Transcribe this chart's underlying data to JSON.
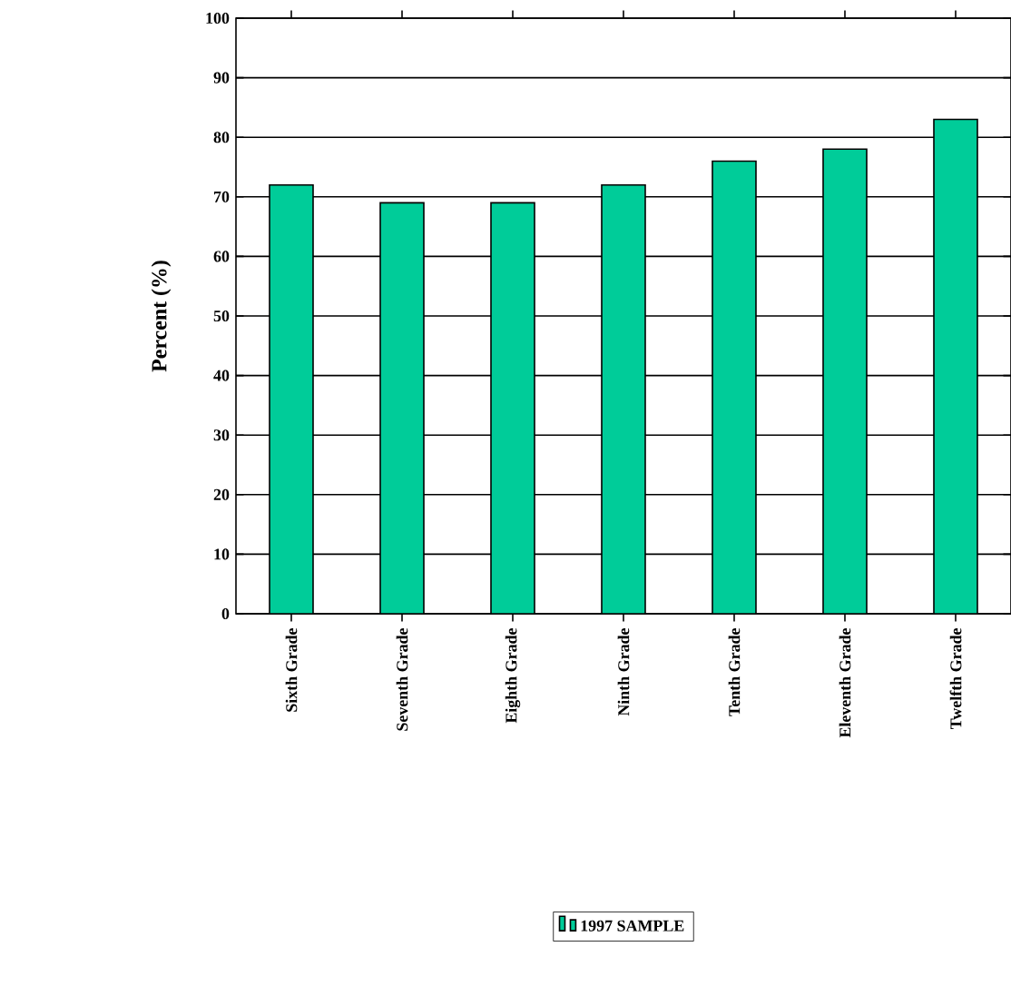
{
  "chart_data": {
    "type": "bar",
    "ylabel": "Percent (%)",
    "categories": [
      "Sixth Grade",
      "Seventh Grade",
      "Eighth Grade",
      "Ninth Grade",
      "Tenth Grade",
      "Eleventh Grade",
      "Twelfth Grade"
    ],
    "series": [
      {
        "name": "1997 SAMPLE",
        "color": "#00cc99",
        "values": [
          72,
          69,
          69,
          72,
          76,
          78,
          83
        ]
      }
    ],
    "ylim": [
      0,
      100
    ],
    "yticks": [
      0,
      10,
      20,
      30,
      40,
      50,
      60,
      70,
      80,
      90,
      100
    ],
    "grid": "y",
    "legend": "bottom"
  }
}
